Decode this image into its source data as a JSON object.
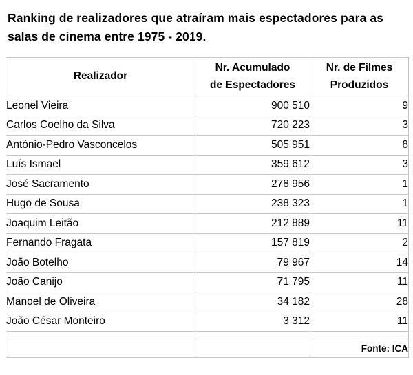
{
  "title": "Ranking de realizadores que atraíram mais espectadores para as salas de cinema entre 1975 - 2019.",
  "header_display": {
    "col1": "Realizador",
    "col2_line1": "Nr. Acumulado",
    "col2_line2": "de Espectadores",
    "col3_line1": "Nr. de Filmes",
    "col3_line2": "Produzidos"
  },
  "footer": {
    "source": "Fonte: ICA"
  },
  "colors": {
    "border": "#c6c6c6",
    "text": "#000000",
    "background": "#ffffff"
  },
  "chart_data": {
    "type": "table",
    "title": "Ranking de realizadores que atraíram mais espectadores para as salas de cinema entre 1975 - 2019.",
    "columns": [
      "Realizador",
      "Nr. Acumulado de Espectadores",
      "Nr. de Filmes Produzidos"
    ],
    "rows": [
      [
        "Leonel Vieira",
        "900 510",
        "9"
      ],
      [
        "Carlos Coelho da Silva",
        "720 223",
        "3"
      ],
      [
        "António-Pedro Vasconcelos",
        "505 951",
        "8"
      ],
      [
        "Luís Ismael",
        "359 612",
        "3"
      ],
      [
        "José Sacramento",
        "278 956",
        "1"
      ],
      [
        "Hugo de Sousa",
        "238 323",
        "1"
      ],
      [
        "Joaquim Leitão",
        "212 889",
        "11"
      ],
      [
        "Fernando Fragata",
        "157 819",
        "2"
      ],
      [
        "João Botelho",
        "79 967",
        "14"
      ],
      [
        "João Canijo",
        "71 795",
        "11"
      ],
      [
        "Manoel de Oliveira",
        "34 182",
        "28"
      ],
      [
        "João César Monteiro",
        "3 312",
        "11"
      ]
    ],
    "source": "Fonte: ICA"
  }
}
